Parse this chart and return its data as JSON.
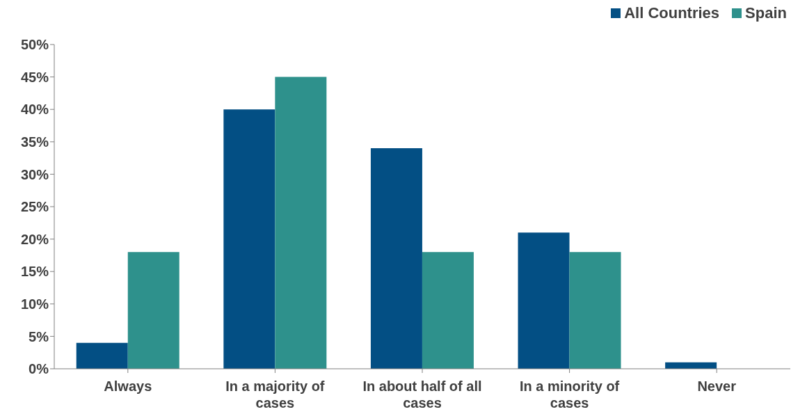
{
  "chart_data": {
    "type": "bar",
    "categories": [
      "Always",
      "In a majority of cases",
      "In about half of all cases",
      "In a minority of cases",
      "Never"
    ],
    "series": [
      {
        "name": "All Countries",
        "color": "#034f84",
        "values": [
          4,
          40,
          34,
          21,
          1
        ]
      },
      {
        "name": "Spain",
        "color": "#2e918c",
        "values": [
          18,
          45,
          18,
          18,
          0
        ]
      }
    ],
    "ylim": [
      0,
      50
    ],
    "yticks": [
      {
        "value": 0,
        "label": "0%"
      },
      {
        "value": 5,
        "label": "5%"
      },
      {
        "value": 10,
        "label": "10%"
      },
      {
        "value": 15,
        "label": "15%"
      },
      {
        "value": 20,
        "label": "20%"
      },
      {
        "value": 25,
        "label": "25%"
      },
      {
        "value": 30,
        "label": "30%"
      },
      {
        "value": 35,
        "label": "35%"
      },
      {
        "value": 40,
        "label": "40%"
      },
      {
        "value": 45,
        "label": "45%"
      },
      {
        "value": 50,
        "label": "50%"
      }
    ],
    "grid": false,
    "legend": "top right"
  }
}
